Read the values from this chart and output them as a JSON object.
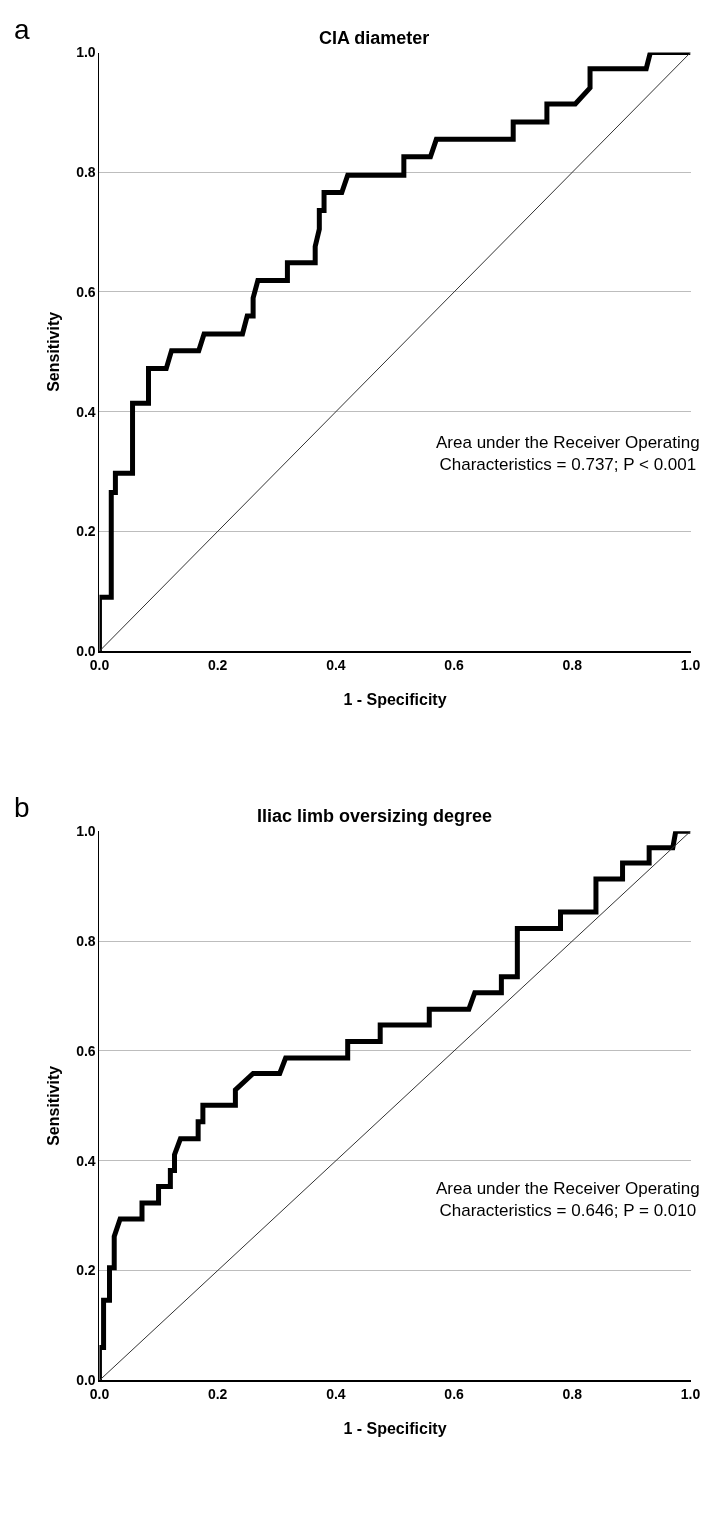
{
  "chart_data": [
    {
      "type": "line",
      "title": "CIA diameter",
      "xlabel": "1 - Specificity",
      "ylabel": "Sensitivity",
      "xlim": [
        0,
        1
      ],
      "ylim": [
        0,
        1
      ],
      "xticks": [
        {
          "value": 0,
          "label": "0.0"
        },
        {
          "value": 0.2,
          "label": "0.2"
        },
        {
          "value": 0.4,
          "label": "0.4"
        },
        {
          "value": 0.6,
          "label": "0.6"
        },
        {
          "value": 0.8,
          "label": "0.8"
        },
        {
          "value": 1,
          "label": "1.0"
        }
      ],
      "yticks": [
        {
          "value": 0,
          "label": "0.0"
        },
        {
          "value": 0.2,
          "label": "0.2"
        },
        {
          "value": 0.4,
          "label": "0.4"
        },
        {
          "value": 0.6,
          "label": "0.6"
        },
        {
          "value": 0.8,
          "label": "0.8"
        },
        {
          "value": 1,
          "label": "1.0"
        }
      ],
      "grid": "y",
      "marker": "none",
      "line_style": "solid",
      "annotations": [
        "a",
        "Area under the Receiver Operating\nCharacteristics = 0.737; P < 0.001"
      ],
      "series": [
        {
          "color": "#000000",
          "x": [
            0,
            0,
            0.02,
            0.02,
            0.027,
            0.027,
            0.056,
            0.056,
            0.083,
            0.083,
            0.113,
            0.122,
            0.168,
            0.177,
            0.242,
            0.25,
            0.26,
            0.26,
            0.268,
            0.318,
            0.318,
            0.365,
            0.365,
            0.372,
            0.372,
            0.38,
            0.38,
            0.41,
            0.42,
            0.515,
            0.515,
            0.56,
            0.57,
            0.7,
            0.7,
            0.757,
            0.757,
            0.805,
            0.83,
            0.83,
            0.925,
            0.932,
            1
          ],
          "values": [
            0,
            0.09,
            0.09,
            0.265,
            0.265,
            0.297,
            0.297,
            0.414,
            0.414,
            0.472,
            0.472,
            0.502,
            0.502,
            0.53,
            0.53,
            0.56,
            0.56,
            0.59,
            0.619,
            0.619,
            0.649,
            0.649,
            0.676,
            0.705,
            0.736,
            0.736,
            0.766,
            0.766,
            0.795,
            0.795,
            0.826,
            0.826,
            0.855,
            0.855,
            0.884,
            0.884,
            0.914,
            0.914,
            0.941,
            0.973,
            0.973,
            1,
            1
          ]
        },
        {
          "color": "#333333",
          "x": [
            0,
            1
          ],
          "values": [
            0,
            1
          ]
        }
      ]
    },
    {
      "type": "line",
      "title": "Iliac limb oversizing degree",
      "xlabel": "1 - Specificity",
      "ylabel": "Sensitivity",
      "xlim": [
        0,
        1
      ],
      "ylim": [
        0,
        1
      ],
      "xticks": [
        {
          "value": 0,
          "label": "0.0"
        },
        {
          "value": 0.2,
          "label": "0.2"
        },
        {
          "value": 0.4,
          "label": "0.4"
        },
        {
          "value": 0.6,
          "label": "0.6"
        },
        {
          "value": 0.8,
          "label": "0.8"
        },
        {
          "value": 1,
          "label": "1.0"
        }
      ],
      "yticks": [
        {
          "value": 0,
          "label": "0.0"
        },
        {
          "value": 0.2,
          "label": "0.2"
        },
        {
          "value": 0.4,
          "label": "0.4"
        },
        {
          "value": 0.6,
          "label": "0.6"
        },
        {
          "value": 0.8,
          "label": "0.8"
        },
        {
          "value": 1,
          "label": "1.0"
        }
      ],
      "grid": "y",
      "marker": "none",
      "line_style": "solid",
      "annotations": [
        "b",
        "Area under the Receiver Operating\nCharacteristics = 0.646; P = 0.010"
      ],
      "series": [
        {
          "color": "#000000",
          "x": [
            0,
            0,
            0.007,
            0.007,
            0.017,
            0.017,
            0.025,
            0.025,
            0.035,
            0.072,
            0.072,
            0.1,
            0.1,
            0.12,
            0.12,
            0.127,
            0.127,
            0.137,
            0.167,
            0.167,
            0.175,
            0.175,
            0.23,
            0.23,
            0.26,
            0.305,
            0.315,
            0.42,
            0.42,
            0.475,
            0.475,
            0.558,
            0.558,
            0.625,
            0.635,
            0.68,
            0.68,
            0.707,
            0.707,
            0.78,
            0.78,
            0.84,
            0.84,
            0.885,
            0.885,
            0.93,
            0.93,
            0.97,
            0.975,
            1
          ],
          "values": [
            0,
            0.06,
            0.06,
            0.146,
            0.146,
            0.205,
            0.205,
            0.262,
            0.294,
            0.294,
            0.323,
            0.323,
            0.353,
            0.353,
            0.382,
            0.382,
            0.411,
            0.44,
            0.44,
            0.471,
            0.471,
            0.501,
            0.501,
            0.529,
            0.559,
            0.559,
            0.587,
            0.587,
            0.617,
            0.617,
            0.647,
            0.647,
            0.676,
            0.676,
            0.706,
            0.706,
            0.735,
            0.735,
            0.823,
            0.823,
            0.853,
            0.853,
            0.913,
            0.913,
            0.942,
            0.942,
            0.97,
            0.97,
            1,
            1
          ]
        },
        {
          "color": "#333333",
          "x": [
            0,
            1
          ],
          "values": [
            0,
            1
          ]
        }
      ]
    }
  ]
}
